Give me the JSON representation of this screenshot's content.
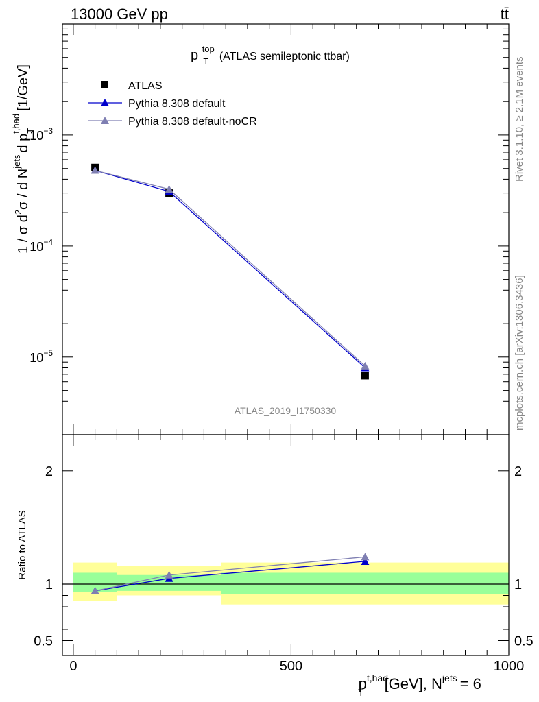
{
  "header": {
    "left": "13000 GeV pp",
    "right": "tt̄"
  },
  "side": {
    "rivet": "Rivet 3.1.10, ≥ 2.1M events",
    "mcplots": "mcplots.cern.ch [arXiv:1306.3436]"
  },
  "colors": {
    "pythia_default": "#0000cc",
    "pythia_nocr": "#7f7fb2",
    "band_inner": "#99ff99",
    "band_outer": "#ffff99",
    "data": "#000000"
  },
  "chart_data": [
    {
      "type": "line",
      "title": {
        "main": "p",
        "sup": "top",
        "sub": "T",
        "rest": "(ATLAS semileptonic ttbar)"
      },
      "ylabel": {
        "pre": "1 / σ d",
        "sup2": "2",
        "mid": "σ / d N",
        "supjets": "jets",
        "mid2": "d p",
        "subT": "T",
        "supthad": "t,had",
        "unit": "[1/GeV]"
      },
      "yscale": "log",
      "ylim": [
        2e-06,
        0.01
      ],
      "yticks": [
        {
          "value": 1e-05,
          "base": "10",
          "exp": "−5"
        },
        {
          "value": 0.0001,
          "base": "10",
          "exp": "−4"
        },
        {
          "value": 0.001,
          "base": "10",
          "exp": "−3"
        }
      ],
      "xlim": [
        -25,
        1000
      ],
      "watermark": "ATLAS_2019_I1750330",
      "legend": {
        "placement": "top-left",
        "entries": [
          "ATLAS",
          "Pythia 8.308 default",
          "Pythia 8.308 default-noCR"
        ]
      },
      "series": [
        {
          "name": "ATLAS",
          "marker": "square",
          "x": [
            50,
            220,
            670
          ],
          "y": [
            0.00051,
            0.0003,
            6.8e-06
          ]
        },
        {
          "name": "Pythia 8.308 default",
          "marker": "triangle",
          "x": [
            50,
            220,
            670
          ],
          "y": [
            0.00048,
            0.00031,
            8e-06
          ]
        },
        {
          "name": "Pythia 8.308 default-noCR",
          "marker": "triangle",
          "x": [
            50,
            220,
            670
          ],
          "y": [
            0.00048,
            0.000325,
            8.3e-06
          ]
        }
      ]
    },
    {
      "type": "line",
      "ylabel": "Ratio to ATLAS",
      "ylim": [
        0.37,
        2.32
      ],
      "yticks": [
        0.5,
        1,
        2
      ],
      "ytick_labels": [
        "0.5",
        "1",
        "2"
      ],
      "xlim": [
        -25,
        1000
      ],
      "xticks": [
        0,
        500,
        1000
      ],
      "xtick_labels": [
        "0",
        "500",
        "1000"
      ],
      "xlabel": {
        "p": "p",
        "sup": "t,had",
        "sub": "T",
        "rest": "[GeV], N",
        "supjets": "jets",
        "tail": "= 6"
      },
      "bands": [
        {
          "x0": 0,
          "x1": 100,
          "inner": [
            0.93,
            1.1
          ],
          "outer": [
            0.85,
            1.19
          ]
        },
        {
          "x0": 100,
          "x1": 340,
          "inner": [
            0.94,
            1.08
          ],
          "outer": [
            0.9,
            1.16
          ]
        },
        {
          "x0": 340,
          "x1": 1000,
          "inner": [
            0.91,
            1.1
          ],
          "outer": [
            0.82,
            1.19
          ]
        }
      ],
      "series": [
        {
          "name": "Pythia 8.308 default",
          "x": [
            50,
            220,
            670
          ],
          "y": [
            0.94,
            1.05,
            1.2
          ]
        },
        {
          "name": "Pythia 8.308 default-noCR",
          "x": [
            50,
            220,
            670
          ],
          "y": [
            0.94,
            1.08,
            1.24
          ]
        }
      ]
    }
  ]
}
